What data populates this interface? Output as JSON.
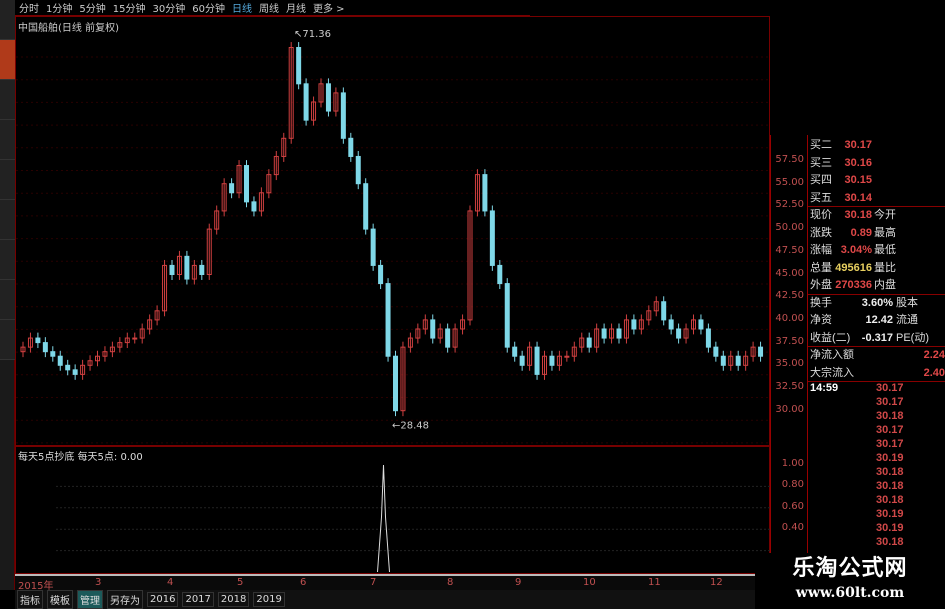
{
  "toolbar": {
    "periods": [
      "分时",
      "1分钟",
      "5分钟",
      "15分钟",
      "30分钟",
      "60分钟",
      "日线",
      "周线",
      "月线",
      "更多 >"
    ],
    "selected": "日线"
  },
  "chart_title": "中国船舶(日线 前复权)",
  "colors": {
    "up": "#d04040",
    "down": "#7fd8e8",
    "axis": "#c05050",
    "border": "#770000"
  },
  "price_axis": [
    "57.50",
    "55.00",
    "52.50",
    "50.00",
    "47.50",
    "45.00",
    "42.50",
    "40.00",
    "37.50",
    "35.00",
    "32.50",
    "30.00"
  ],
  "annotations": {
    "high": "71.36",
    "low": "28.48"
  },
  "closes": [
    37,
    38,
    37.5,
    36.5,
    36,
    35,
    34.5,
    34,
    35,
    35.5,
    36,
    36.5,
    37,
    37.5,
    38,
    38,
    39,
    40,
    41,
    46,
    45,
    47,
    44.5,
    46,
    45,
    50,
    52,
    55,
    54,
    57,
    53,
    52,
    54,
    56,
    58,
    60,
    70,
    66,
    62,
    64,
    66,
    63,
    65,
    60,
    58,
    55,
    50,
    46,
    44,
    36,
    30,
    37,
    38,
    39,
    40,
    38,
    39,
    37,
    39,
    40,
    52,
    56,
    52,
    46,
    44,
    37,
    36,
    35,
    37,
    34,
    36,
    35,
    36,
    36,
    37,
    38,
    37,
    39,
    38,
    39,
    38,
    40,
    39,
    40,
    41,
    42,
    40,
    39,
    38,
    39,
    40,
    39,
    37,
    36,
    35,
    36,
    35,
    36,
    37,
    36
  ],
  "quote": {
    "bids": [
      {
        "label": "买二",
        "value": "30.17"
      },
      {
        "label": "买三",
        "value": "30.16"
      },
      {
        "label": "买四",
        "value": "30.15"
      },
      {
        "label": "买五",
        "value": "30.14"
      }
    ],
    "stats": [
      {
        "label": "现价",
        "value": "30.18",
        "label2": "今开"
      },
      {
        "label": "涨跌",
        "value": "0.89",
        "label2": "最高"
      },
      {
        "label": "涨幅",
        "value": "3.04%",
        "label2": "最低"
      },
      {
        "label": "总量",
        "value": "495616",
        "label2": "量比"
      },
      {
        "label": "外盘",
        "value": "270336",
        "label2": "内盘"
      }
    ],
    "fund": [
      {
        "label": "换手",
        "value": "3.60%",
        "label2": "股本"
      },
      {
        "label": "净资",
        "value": "12.42",
        "label2": "流通"
      },
      {
        "label": "收益(二)",
        "value": "-0.317",
        "label2": "PE(动)"
      }
    ],
    "flows": [
      {
        "label": "净流入额",
        "value": "2.24"
      },
      {
        "label": "大宗流入",
        "value": "2.40"
      }
    ],
    "time": "14:59",
    "ticks": [
      "30.17",
      "30.17",
      "30.18",
      "30.17",
      "30.17",
      "30.19",
      "30.18",
      "30.18",
      "30.18",
      "30.19",
      "30.19",
      "30.18"
    ]
  },
  "indicator": {
    "title": "每天5点抄底",
    "label": "每天5点: 0.00",
    "axis": [
      "1.00",
      "0.80",
      "0.60",
      "0.40"
    ],
    "spike_value": 1.0
  },
  "months": [
    "2015年",
    "3",
    "4",
    "5",
    "6",
    "7",
    "8",
    "9",
    "10",
    "11",
    "12"
  ],
  "bottom_tabs": [
    "指标",
    "模板",
    "管理",
    "另存为",
    "2016",
    "2017",
    "2018",
    "2019"
  ],
  "bottom_selected": "管理",
  "watermark": {
    "name": "乐淘公式网",
    "url": "www.60lt.com"
  }
}
